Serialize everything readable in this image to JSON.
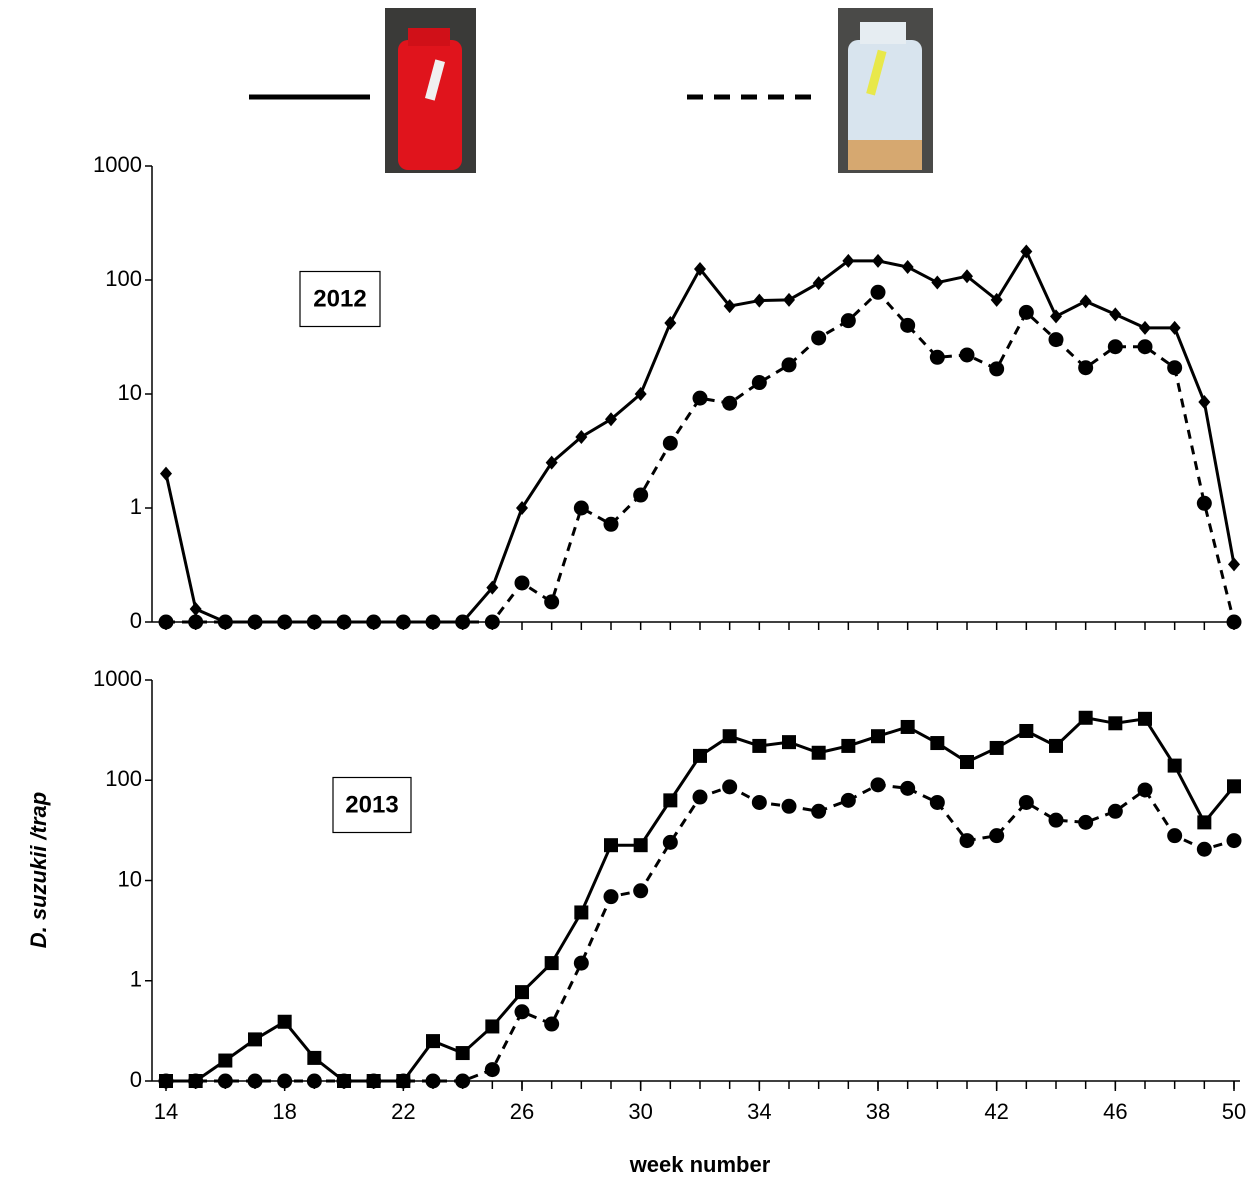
{
  "chart_data": [
    {
      "type": "line",
      "annotation": "2012",
      "log_scale": true,
      "x": [
        14,
        15,
        16,
        17,
        18,
        19,
        20,
        21,
        22,
        23,
        24,
        25,
        26,
        27,
        28,
        29,
        30,
        31,
        32,
        33,
        34,
        35,
        36,
        37,
        38,
        39,
        40,
        41,
        42,
        43,
        44,
        45,
        46,
        47,
        48,
        49,
        50
      ],
      "xlim": [
        14,
        50
      ],
      "ylim": [
        0.1,
        1000
      ],
      "yticks": [
        {
          "value": 0.1,
          "label": "0"
        },
        1,
        10,
        100,
        1000
      ],
      "series": [
        {
          "color": "#000000",
          "line_style": "solid",
          "marker": "diamond",
          "values": [
            2,
            0.13,
            0.1,
            0.1,
            0.1,
            0.1,
            0.1,
            0.1,
            0.1,
            0.1,
            0.1,
            0.2,
            1,
            2.5,
            4.2,
            6,
            10,
            42,
            125,
            59,
            66,
            67,
            94,
            147,
            147,
            130,
            95,
            108,
            67,
            178,
            48,
            65,
            50,
            38,
            38,
            8.5,
            0.32
          ]
        },
        {
          "color": "#000000",
          "line_style": "dashed",
          "marker": "circle",
          "values": [
            0.1,
            0.1,
            0.1,
            0.1,
            0.1,
            0.1,
            0.1,
            0.1,
            0.1,
            0.1,
            0.1,
            0.1,
            0.22,
            0.15,
            1,
            0.72,
            1.3,
            3.7,
            9.2,
            8.3,
            12.6,
            18,
            31,
            44,
            78,
            40,
            21,
            22,
            16.6,
            52,
            30,
            17,
            26,
            26,
            17,
            1.1,
            0.1
          ]
        }
      ]
    },
    {
      "type": "line",
      "annotation": "2013",
      "log_scale": true,
      "x": [
        14,
        15,
        16,
        17,
        18,
        19,
        20,
        21,
        22,
        23,
        24,
        25,
        26,
        27,
        28,
        29,
        30,
        31,
        32,
        33,
        34,
        35,
        36,
        37,
        38,
        39,
        40,
        41,
        42,
        43,
        44,
        45,
        46,
        47,
        48,
        49,
        50
      ],
      "xlim": [
        14,
        50
      ],
      "xticks": [
        14,
        18,
        22,
        26,
        30,
        34,
        38,
        42,
        46,
        50
      ],
      "xlabel": "week number",
      "ylabel": "D. suzukii /trap",
      "ylim": [
        0.1,
        1000
      ],
      "yticks": [
        {
          "value": 0.1,
          "label": "0"
        },
        1,
        10,
        100,
        1000
      ],
      "series": [
        {
          "color": "#000000",
          "line_style": "solid",
          "marker": "square",
          "values": [
            0.1,
            0.1,
            0.16,
            0.26,
            0.39,
            0.17,
            0.1,
            0.1,
            0.1,
            0.25,
            0.19,
            0.35,
            0.77,
            1.5,
            4.8,
            22.5,
            22.5,
            63,
            175,
            275,
            220,
            240,
            188,
            220,
            275,
            340,
            235,
            152,
            210,
            310,
            220,
            420,
            370,
            410,
            140,
            38,
            87
          ]
        },
        {
          "color": "#000000",
          "line_style": "dashed",
          "marker": "circle",
          "values": [
            0.1,
            0.1,
            0.1,
            0.1,
            0.1,
            0.1,
            0.1,
            0.1,
            0.1,
            0.1,
            0.1,
            0.13,
            0.49,
            0.37,
            1.5,
            6.9,
            7.9,
            24,
            68,
            86,
            60,
            55,
            49,
            63,
            90,
            83,
            60,
            25,
            28,
            60,
            40,
            38,
            49,
            80,
            28,
            20.5,
            25
          ]
        }
      ]
    }
  ]
}
